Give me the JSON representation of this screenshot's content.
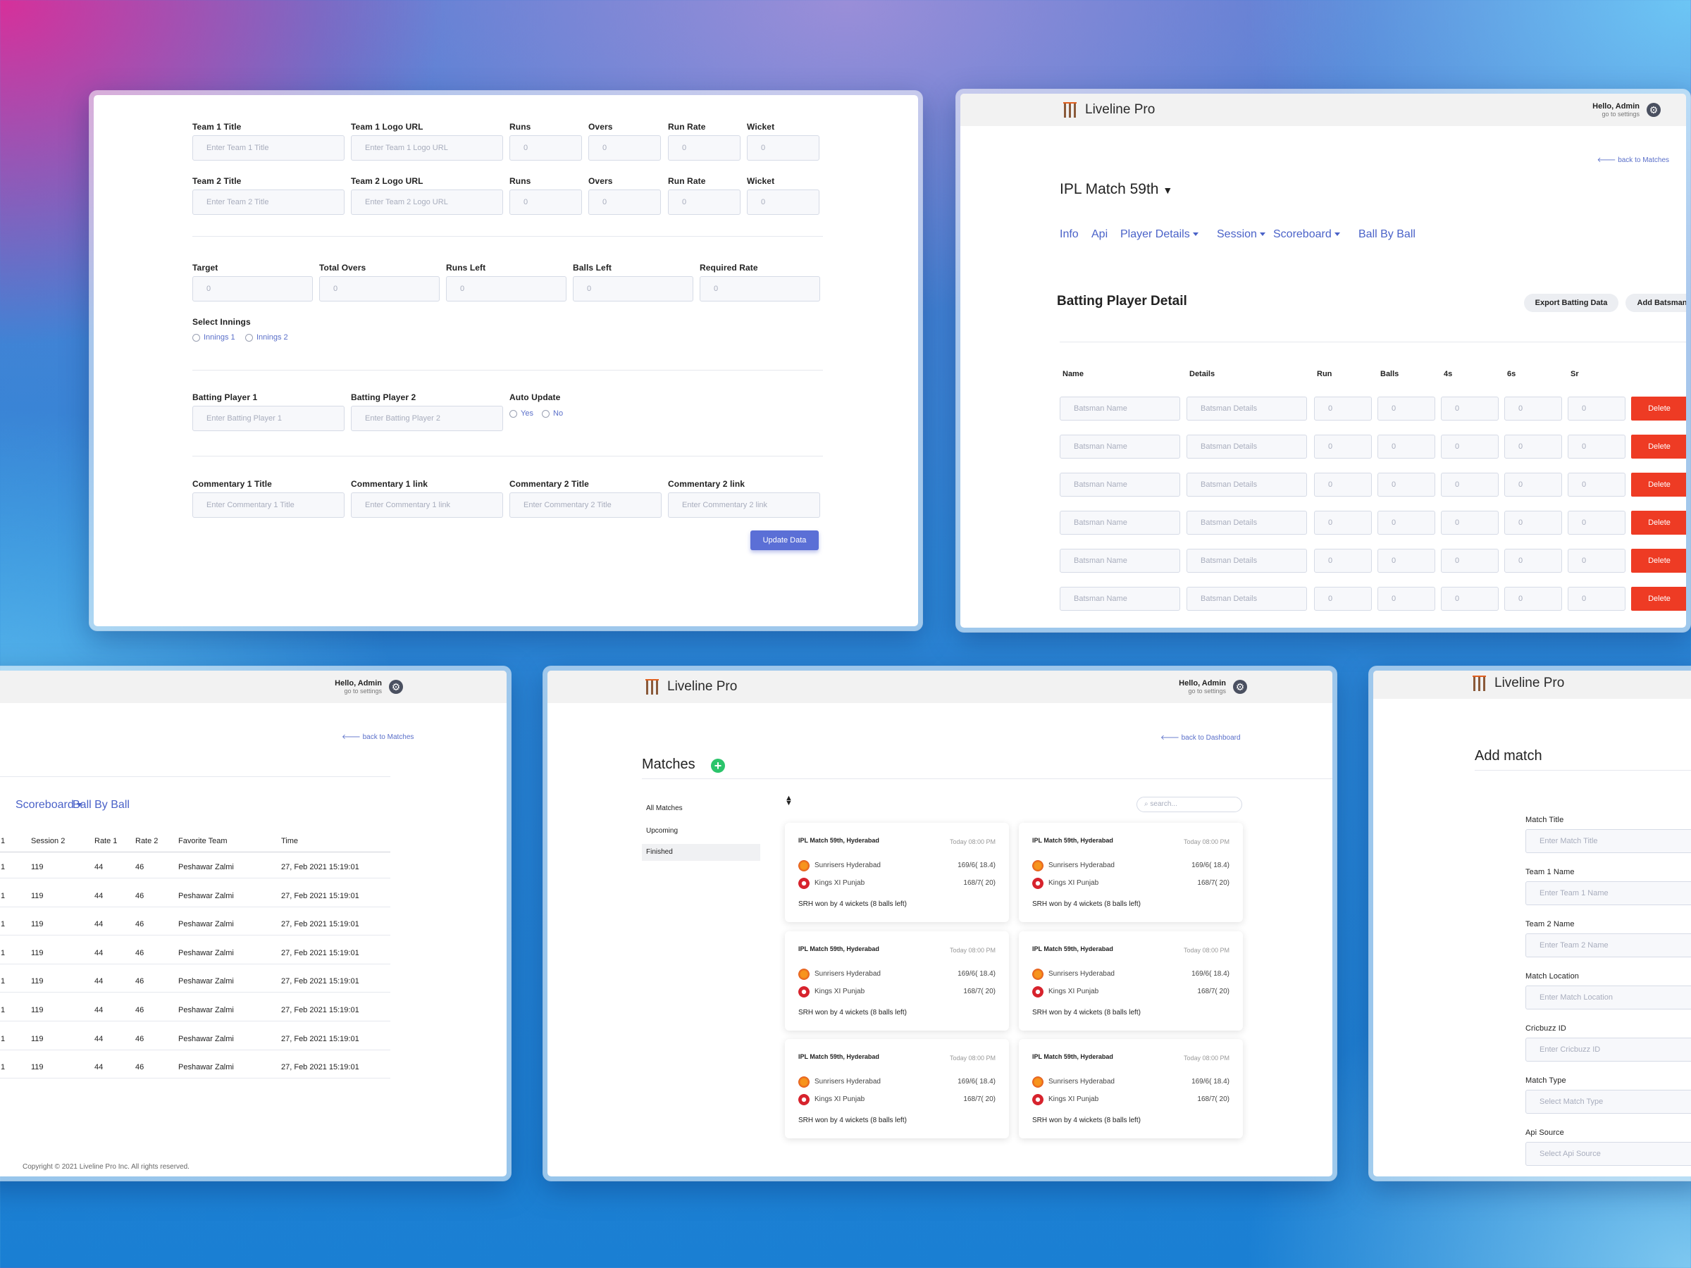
{
  "brand_name": "Liveline Pro",
  "greeting": "Hello, Admin",
  "settings_link": "go to settings",
  "update_form": {
    "row1": {
      "team_title_label": "Team 1 Title",
      "team_title_placeholder": "Enter Team 1 Title",
      "logo_label": "Team 1 Logo URL",
      "logo_placeholder": "Enter Team 1 Logo URL",
      "runs_label": "Runs",
      "overs_label": "Overs",
      "rate_label": "Run Rate",
      "wicket_label": "Wicket",
      "value": "0"
    },
    "row2": {
      "team_title_label": "Team 2 Title",
      "team_title_placeholder": "Enter Team 2 Title",
      "logo_label": "Team 2 Logo URL",
      "logo_placeholder": "Enter Team 2 Logo URL",
      "runs_label": "Runs",
      "overs_label": "Overs",
      "rate_label": "Run Rate",
      "wicket_label": "Wicket",
      "value": "0"
    },
    "target_label": "Target",
    "total_overs_label": "Total Overs",
    "runs_left_label": "Runs Left",
    "balls_left_label": "Balls Left",
    "required_rate_label": "Required Rate",
    "zero": "0",
    "innings_label": "Select Innings",
    "innings1": "Innings 1",
    "innings2": "Innings 2",
    "batting1_label": "Batting Player 1",
    "batting1_placeholder": "Enter Batting Player 1",
    "batting2_label": "Batting Player 2",
    "batting2_placeholder": "Enter Batting Player 2",
    "auto_update_label": "Auto Update",
    "yes": "Yes",
    "no": "No",
    "comm1_title_label": "Commentary 1 Title",
    "comm1_title_placeholder": "Enter Commentary 1 Title",
    "comm1_link_label": "Commentary 1 link",
    "comm1_link_placeholder": "Enter Commentary 1 link",
    "comm2_title_label": "Commentary 2 Title",
    "comm2_title_placeholder": "Enter Commentary 2 Title",
    "comm2_link_label": "Commentary 2 link",
    "comm2_link_placeholder": "Enter Commentary 2 link",
    "update_button": "Update Data"
  },
  "batting_panel": {
    "back": "back to Matches",
    "match_title": "IPL Match 59th",
    "tabs": [
      "Info",
      "Api",
      "Player Details",
      "Session",
      "Scoreboard",
      "Ball By Ball"
    ],
    "section_title": "Batting Player Detail",
    "export_button": "Export Batting Data",
    "add_button": "Add Batsman",
    "headers": [
      "Name",
      "Details",
      "Run",
      "Balls",
      "4s",
      "6s",
      "Sr"
    ],
    "name_placeholder": "Batsman Name",
    "details_placeholder": "Batsman Details",
    "zero": "0",
    "delete": "Delete"
  },
  "session_panel": {
    "back": "back to Matches",
    "tabs": [
      "Scoreboard",
      "Ball By Ball"
    ],
    "headers": [
      "1",
      "Session 2",
      "Rate 1",
      "Rate 2",
      "Favorite Team",
      "Time"
    ],
    "row": {
      "c0": "1",
      "session2": "119",
      "rate1": "44",
      "rate2": "46",
      "team": "Peshawar Zalmi",
      "time": "27, Feb 2021 15:19:01"
    },
    "copyright": "Copyright © 2021 Liveline Pro Inc. All rights reserved."
  },
  "matches_panel": {
    "back": "back to Dashboard",
    "title": "Matches",
    "search_placeholder": "search...",
    "filters": [
      "All Matches",
      "Upcoming",
      "Finished"
    ],
    "card": {
      "title": "IPL Match 59th, Hyderabad",
      "date": "Today 08:00 PM",
      "team1": "Sunrisers Hyderabad",
      "score1": "169/6( 18.4)",
      "team2": "Kings XI Punjab",
      "score2": "168/7( 20)",
      "result": "SRH won by 4 wickets (8 balls left)"
    }
  },
  "add_match": {
    "title": "Add match",
    "fields": [
      {
        "label": "Match Title",
        "placeholder": "Enter Match Title"
      },
      {
        "label": "Team 1 Name",
        "placeholder": "Enter Team 1 Name"
      },
      {
        "label": "Team 2 Name",
        "placeholder": "Enter Team 2 Name"
      },
      {
        "label": "Match Location",
        "placeholder": "Enter Match Location"
      },
      {
        "label": "Cricbuzz ID",
        "placeholder": "Enter Cricbuzz ID"
      },
      {
        "label": "Match Type",
        "placeholder": "Select Match Type"
      },
      {
        "label": "Api Source",
        "placeholder": "Select Api Source"
      }
    ]
  },
  "colors": {
    "accent": "#4a62c8",
    "delete": "#ee3b24",
    "add": "#2bc46b",
    "button": "#5b6fd6"
  }
}
